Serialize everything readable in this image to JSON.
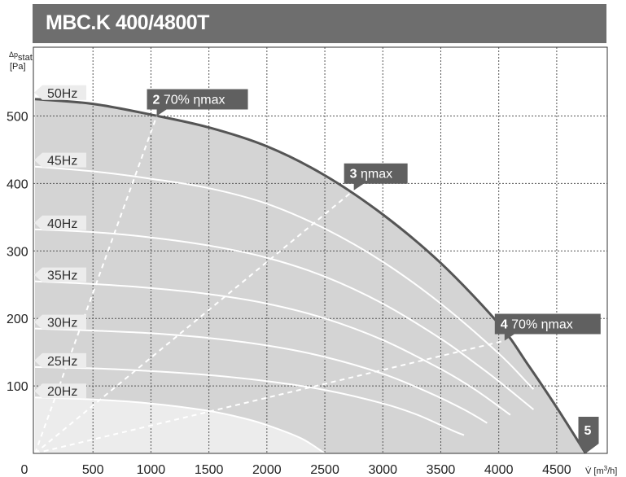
{
  "title": "MBC.K 400/4800T",
  "chart_data": {
    "type": "line",
    "title": "MBC.K 400/4800T",
    "xlabel": "V̇ [m³/h]",
    "ylabel": "Δp stat [Pa]",
    "xlim": [
      0,
      5000
    ],
    "ylim": [
      0,
      560
    ],
    "x_ticks": [
      "0",
      "500",
      "1000",
      "1500",
      "2000",
      "2500",
      "3000",
      "3500",
      "4000",
      "4500"
    ],
    "y_ticks": [
      "100",
      "200",
      "300",
      "400",
      "500"
    ],
    "grid": true,
    "colors": {
      "fill": "#d4d4d4",
      "fill_light": "#ececec",
      "outer_curve": "#555555",
      "inner_curve": "#ffffff",
      "callout": "#606060",
      "title_bar": "#6e6e6e"
    },
    "series": [
      {
        "name": "50Hz",
        "points": [
          [
            0,
            525
          ],
          [
            500,
            518
          ],
          [
            1000,
            502
          ],
          [
            1500,
            483
          ],
          [
            2000,
            455
          ],
          [
            2500,
            412
          ],
          [
            3000,
            354
          ],
          [
            3500,
            282
          ],
          [
            4000,
            192
          ],
          [
            4250,
            132
          ],
          [
            4500,
            68
          ],
          [
            4750,
            0
          ]
        ]
      },
      {
        "name": "45Hz",
        "points": [
          [
            0,
            425
          ],
          [
            500,
            418
          ],
          [
            1000,
            407
          ],
          [
            1500,
            393
          ],
          [
            2000,
            370
          ],
          [
            2500,
            333
          ],
          [
            3000,
            284
          ],
          [
            3500,
            222
          ],
          [
            4000,
            148
          ],
          [
            4250,
            104
          ],
          [
            4300,
            95
          ]
        ]
      },
      {
        "name": "40Hz",
        "points": [
          [
            0,
            332
          ],
          [
            500,
            328
          ],
          [
            1000,
            320
          ],
          [
            1500,
            308
          ],
          [
            2000,
            290
          ],
          [
            2500,
            262
          ],
          [
            3000,
            222
          ],
          [
            3500,
            170
          ],
          [
            3800,
            133
          ],
          [
            4000,
            107
          ],
          [
            4300,
            65
          ]
        ]
      },
      {
        "name": "35Hz",
        "points": [
          [
            0,
            255
          ],
          [
            500,
            251
          ],
          [
            1000,
            245
          ],
          [
            1500,
            236
          ],
          [
            2000,
            222
          ],
          [
            2500,
            200
          ],
          [
            3000,
            168
          ],
          [
            3500,
            125
          ],
          [
            3800,
            94
          ],
          [
            4100,
            57
          ]
        ]
      },
      {
        "name": "30Hz",
        "points": [
          [
            0,
            185
          ],
          [
            500,
            182
          ],
          [
            1000,
            178
          ],
          [
            1500,
            171
          ],
          [
            2000,
            160
          ],
          [
            2500,
            143
          ],
          [
            3000,
            118
          ],
          [
            3400,
            90
          ],
          [
            3700,
            65
          ],
          [
            3900,
            45
          ]
        ]
      },
      {
        "name": "25Hz",
        "points": [
          [
            0,
            128
          ],
          [
            500,
            126
          ],
          [
            1000,
            122
          ],
          [
            1500,
            116
          ],
          [
            2000,
            107
          ],
          [
            2500,
            94
          ],
          [
            3000,
            74
          ],
          [
            3300,
            57
          ],
          [
            3600,
            34
          ],
          [
            3700,
            27
          ]
        ]
      },
      {
        "name": "20Hz",
        "points": [
          [
            0,
            83
          ],
          [
            500,
            80
          ],
          [
            1000,
            74
          ],
          [
            1500,
            63
          ],
          [
            1800,
            52
          ],
          [
            2000,
            42
          ],
          [
            2300,
            22
          ],
          [
            2500,
            0
          ]
        ]
      }
    ],
    "efficiency_lines": [
      {
        "label_num": "2",
        "label_text": "70% ηmax",
        "end": [
          1050,
          500
        ]
      },
      {
        "label_num": "3",
        "label_text": "ηmax",
        "end": [
          2750,
          390
        ]
      },
      {
        "label_num": "4",
        "label_text": "70% ηmax",
        "end": [
          4050,
          167
        ]
      }
    ],
    "end_marker": {
      "label": "5",
      "at": [
        4750,
        0
      ]
    }
  },
  "axis_labels": {
    "y_top": "Δp",
    "y_sub": "stat",
    "y_unit": "[Pa]",
    "x_unit_pre": "V̇ [m",
    "x_unit_sup": "3",
    "x_unit_post": "/h]"
  }
}
